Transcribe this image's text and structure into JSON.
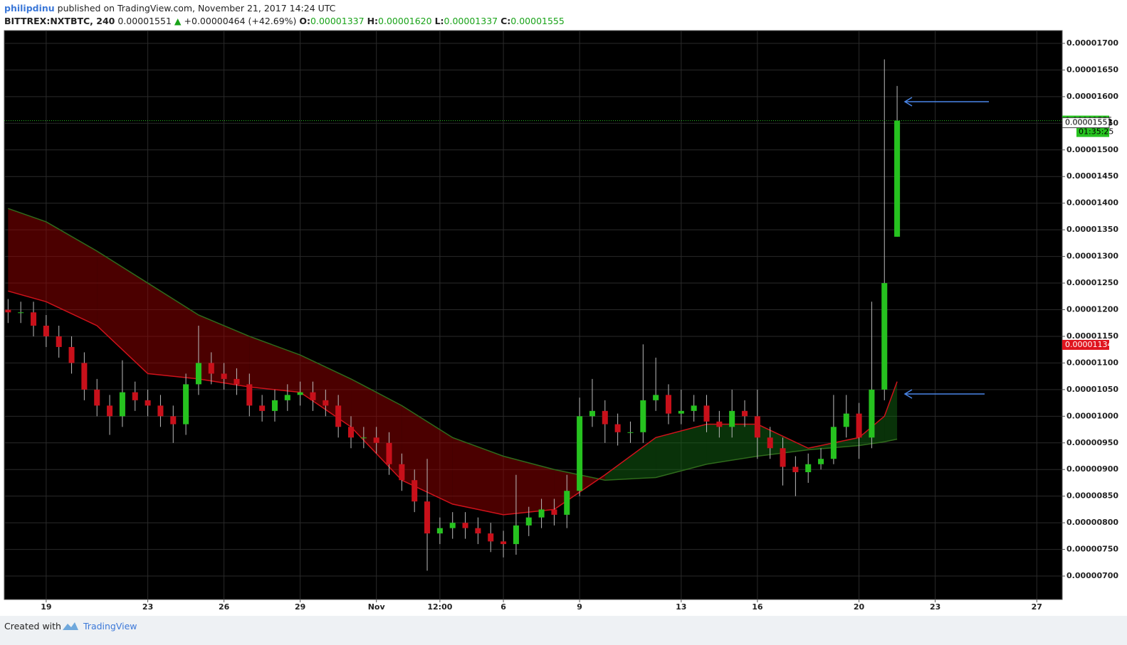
{
  "chart_data": {
    "type": "candlestick",
    "title": "philipdinu",
    "subtitle": "published on TradingView.com, November 21, 2017 14:24 UTC",
    "symbol": "BITTREX:NXTBTC, 240",
    "header_price": "0.00001551",
    "change_arrow": "▲",
    "change": "+0.00000464 (+42.69%)",
    "ohlc_labels": [
      "O:",
      "H:",
      "L:",
      "C:"
    ],
    "ohlc_values": [
      "0.00001337",
      "0.00001620",
      "0.00001337",
      "0.00001555"
    ],
    "up_color": "#26c21f",
    "down_color": "#c8101a",
    "grid": true,
    "xlim": [
      -1.65,
      40
    ],
    "ylim": [
      6.56e-06,
      1.724e-05
    ],
    "xticks": [
      {
        "value": 0,
        "label": "19"
      },
      {
        "value": 4,
        "label": "23"
      },
      {
        "value": 7,
        "label": "26"
      },
      {
        "value": 10,
        "label": "29"
      },
      {
        "value": 13,
        "label": "Nov"
      },
      {
        "value": 15.5,
        "label": "12:00"
      },
      {
        "value": 18,
        "label": "6"
      },
      {
        "value": 21,
        "label": "9"
      },
      {
        "value": 25,
        "label": "13"
      },
      {
        "value": 28,
        "label": "16"
      },
      {
        "value": 32,
        "label": "20"
      },
      {
        "value": 35,
        "label": "23"
      },
      {
        "value": 39,
        "label": "27"
      }
    ],
    "yticks": [
      {
        "value": 7e-06,
        "label": "0.00000700"
      },
      {
        "value": 7.5e-06,
        "label": "0.00000750"
      },
      {
        "value": 8e-06,
        "label": "0.00000800"
      },
      {
        "value": 8.5e-06,
        "label": "0.00000850"
      },
      {
        "value": 9e-06,
        "label": "0.00000900"
      },
      {
        "value": 9.5e-06,
        "label": "0.00000950"
      },
      {
        "value": 1e-05,
        "label": "0.00001000"
      },
      {
        "value": 1.05e-05,
        "label": "0.00001050"
      },
      {
        "value": 1.1e-05,
        "label": "0.00001100"
      },
      {
        "value": 1.15e-05,
        "label": "0.00001150"
      },
      {
        "value": 1.2e-05,
        "label": "0.00001200"
      },
      {
        "value": 1.25e-05,
        "label": "0.00001250"
      },
      {
        "value": 1.3e-05,
        "label": "0.00001300"
      },
      {
        "value": 1.35e-05,
        "label": "0.00001350"
      },
      {
        "value": 1.4e-05,
        "label": "0.00001400"
      },
      {
        "value": 1.45e-05,
        "label": "0.00001450"
      },
      {
        "value": 1.5e-05,
        "label": "0.00001500"
      },
      {
        "value": 1.55e-05,
        "label": "0.00001550"
      },
      {
        "value": 1.6e-05,
        "label": "0.00001600"
      },
      {
        "value": 1.65e-05,
        "label": "0.00001650"
      },
      {
        "value": 1.7e-05,
        "label": "0.00001700"
      }
    ],
    "x": [
      -1.5,
      -1,
      -0.5,
      0,
      0.5,
      1,
      1.5,
      2,
      2.5,
      3,
      3.5,
      4,
      4.5,
      5,
      5.5,
      6,
      6.5,
      7,
      7.5,
      8,
      8.5,
      9,
      9.5,
      10,
      10.5,
      11,
      11.5,
      12,
      12.5,
      13,
      13.5,
      14,
      14.5,
      15,
      15.5,
      16,
      16.5,
      17,
      17.5,
      18,
      18.5,
      19,
      19.5,
      20,
      20.5,
      21,
      21.5,
      22,
      22.5,
      23,
      23.5,
      24,
      24.5,
      25,
      25.5,
      26,
      26.5,
      27,
      27.5,
      28,
      28.5,
      29,
      29.5,
      30,
      30.5,
      31,
      31.5,
      32,
      32.5,
      33,
      33.5
    ],
    "open": [
      1.2e-05,
      1.195e-05,
      1.195e-05,
      1.17e-05,
      1.15e-05,
      1.13e-05,
      1.1e-05,
      1.05e-05,
      1.02e-05,
      1e-05,
      1.045e-05,
      1.03e-05,
      1.02e-05,
      1e-05,
      9.85e-06,
      1.06e-05,
      1.1e-05,
      1.08e-05,
      1.07e-05,
      1.06e-05,
      1.02e-05,
      1.01e-05,
      1.03e-05,
      1.04e-05,
      1.045e-05,
      1.03e-05,
      1.02e-05,
      9.8e-06,
      9.6e-06,
      9.6e-06,
      9.5e-06,
      9.1e-06,
      8.8e-06,
      8.4e-06,
      7.8e-06,
      7.9e-06,
      8e-06,
      7.9e-06,
      7.8e-06,
      7.65e-06,
      7.6e-06,
      7.95e-06,
      8.1e-06,
      8.25e-06,
      8.15e-06,
      8.6e-06,
      1e-05,
      1.01e-05,
      9.85e-06,
      9.7e-06,
      9.7e-06,
      1.03e-05,
      1.04e-05,
      1.005e-05,
      1.01e-05,
      1.02e-05,
      9.9e-06,
      9.8e-06,
      1.01e-05,
      1e-05,
      9.6e-06,
      9.4e-06,
      9.05e-06,
      8.95e-06,
      9.1e-06,
      9.2e-06,
      9.8e-06,
      1.005e-05,
      9.6e-06,
      1.05e-05,
      1.337e-05
    ],
    "high": [
      1.22e-05,
      1.215e-05,
      1.215e-05,
      1.19e-05,
      1.17e-05,
      1.15e-05,
      1.12e-05,
      1.07e-05,
      1.04e-05,
      1.105e-05,
      1.065e-05,
      1.05e-05,
      1.04e-05,
      1.02e-05,
      1.08e-05,
      1.17e-05,
      1.12e-05,
      1.1e-05,
      1.09e-05,
      1.08e-05,
      1.04e-05,
      1.05e-05,
      1.06e-05,
      1.065e-05,
      1.065e-05,
      1.05e-05,
      1.04e-05,
      1e-05,
      9.8e-06,
      9.8e-06,
      9.7e-06,
      9.3e-06,
      9e-06,
      9.2e-06,
      8.1e-06,
      8.2e-06,
      8.2e-06,
      8.1e-06,
      8e-06,
      7.85e-06,
      8.9e-06,
      8.3e-06,
      8.45e-06,
      8.45e-06,
      8.9e-06,
      1.035e-05,
      1.07e-05,
      1.03e-05,
      1.005e-05,
      9.9e-06,
      1.135e-05,
      1.11e-05,
      1.06e-05,
      1.05e-05,
      1.04e-05,
      1.04e-05,
      1.01e-05,
      1.05e-05,
      1.03e-05,
      1.05e-05,
      9.8e-06,
      9.6e-06,
      9.25e-06,
      9.3e-06,
      9.4e-06,
      1.04e-05,
      1.04e-05,
      1.025e-05,
      1.215e-05,
      1.67e-05,
      1.62e-05
    ],
    "low": [
      1.175e-05,
      1.175e-05,
      1.15e-05,
      1.13e-05,
      1.11e-05,
      1.08e-05,
      1.03e-05,
      1e-05,
      9.65e-06,
      9.8e-06,
      1.01e-05,
      1e-05,
      9.8e-06,
      9.5e-06,
      9.65e-06,
      1.04e-05,
      1.06e-05,
      1.05e-05,
      1.04e-05,
      1e-05,
      9.9e-06,
      9.9e-06,
      1.01e-05,
      1.02e-05,
      1.01e-05,
      1e-05,
      9.6e-06,
      9.4e-06,
      9.4e-06,
      9.3e-06,
      8.9e-06,
      8.6e-06,
      8.2e-06,
      7.1e-06,
      7.6e-06,
      7.7e-06,
      7.7e-06,
      7.6e-06,
      7.45e-06,
      7.35e-06,
      7.4e-06,
      7.75e-06,
      7.9e-06,
      7.95e-06,
      7.9e-06,
      8.5e-06,
      9.8e-06,
      9.5e-06,
      9.45e-06,
      9.5e-06,
      9.5e-06,
      1.01e-05,
      9.85e-06,
      9.85e-06,
      9.9e-06,
      9.7e-06,
      9.6e-06,
      9.6e-06,
      9.8e-06,
      9.2e-06,
      9.2e-06,
      8.7e-06,
      8.5e-06,
      8.75e-06,
      9e-06,
      9.1e-06,
      9.6e-06,
      9.2e-06,
      9.4e-06,
      1.03e-05,
      1.337e-05
    ],
    "close": [
      1.195e-05,
      1.195e-05,
      1.17e-05,
      1.15e-05,
      1.13e-05,
      1.1e-05,
      1.05e-05,
      1.02e-05,
      1e-05,
      1.045e-05,
      1.03e-05,
      1.02e-05,
      1e-05,
      9.85e-06,
      1.06e-05,
      1.1e-05,
      1.08e-05,
      1.07e-05,
      1.06e-05,
      1.02e-05,
      1.01e-05,
      1.03e-05,
      1.04e-05,
      1.045e-05,
      1.03e-05,
      1.02e-05,
      9.8e-06,
      9.6e-06,
      9.6e-06,
      9.5e-06,
      9.1e-06,
      8.8e-06,
      8.4e-06,
      7.8e-06,
      7.9e-06,
      8e-06,
      7.9e-06,
      7.8e-06,
      7.65e-06,
      7.6e-06,
      7.95e-06,
      8.1e-06,
      8.25e-06,
      8.15e-06,
      8.6e-06,
      1e-05,
      1.01e-05,
      9.85e-06,
      9.7e-06,
      9.7e-06,
      1.03e-05,
      1.04e-05,
      1.005e-05,
      1.01e-05,
      1.02e-05,
      9.9e-06,
      9.8e-06,
      1.01e-05,
      1e-05,
      9.6e-06,
      9.4e-06,
      9.05e-06,
      8.95e-06,
      9.1e-06,
      9.2e-06,
      9.8e-06,
      1.005e-05,
      9.6e-06,
      1.05e-05,
      1.25e-05,
      1.555e-05
    ],
    "cloud": {
      "x": [
        -1.5,
        0,
        2,
        4,
        6,
        8,
        10,
        12,
        14,
        16,
        18,
        20,
        22,
        24,
        26,
        28,
        30,
        32,
        33,
        33.5
      ],
      "fast": [
        1.235e-05,
        1.215e-05,
        1.17e-05,
        1.08e-05,
        1.07e-05,
        1.055e-05,
        1.045e-05,
        9.8e-06,
        8.8e-06,
        8.35e-06,
        8.15e-06,
        8.25e-06,
        8.9e-06,
        9.6e-06,
        9.85e-06,
        9.85e-06,
        9.4e-06,
        9.6e-06,
        1e-05,
        1.065e-05
      ],
      "slow": [
        1.39e-05,
        1.365e-05,
        1.31e-05,
        1.25e-05,
        1.19e-05,
        1.15e-05,
        1.115e-05,
        1.07e-05,
        1.02e-05,
        9.6e-06,
        9.25e-06,
        9e-06,
        8.8e-06,
        8.85e-06,
        9.1e-06,
        9.25e-06,
        9.37e-06,
        9.45e-06,
        9.52e-06,
        9.57e-06
      ],
      "fast_color": "#d0121b",
      "slow_color": "#2f6b1c"
    },
    "last_close": 1.555e-05,
    "countdown": "01:35:25",
    "last_price": 1.551e-05,
    "level": 1.134e-05,
    "footer_text": "Created with",
    "footer_brand": "TradingView"
  }
}
